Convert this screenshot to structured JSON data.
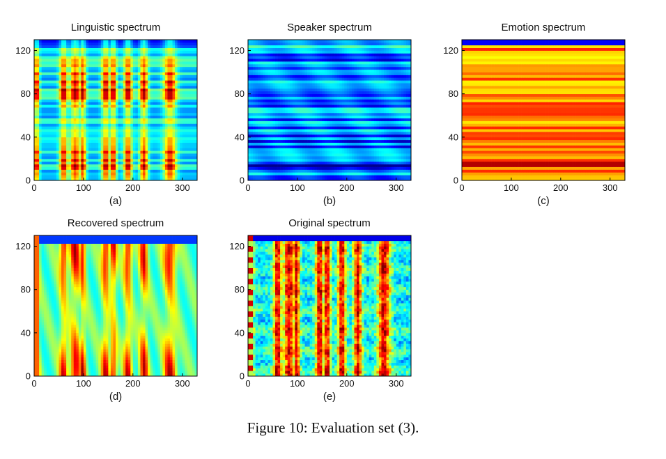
{
  "figure": {
    "caption": "Figure 10: Evaluation set (3)."
  },
  "colors": {
    "colormap": [
      "#00008f",
      "#0000ff",
      "#0080ff",
      "#00ffff",
      "#80ff80",
      "#ffff00",
      "#ff8000",
      "#ff0000",
      "#800000"
    ]
  },
  "chart_data": [
    {
      "type": "heatmap",
      "title": "Linguistic spectrum",
      "sublabel": "(a)",
      "xlim": [
        0,
        330
      ],
      "ylim": [
        0,
        130
      ],
      "xticks": [
        0,
        100,
        200,
        300
      ],
      "yticks": [
        0,
        40,
        80,
        120
      ],
      "pattern": "linguistic"
    },
    {
      "type": "heatmap",
      "title": "Speaker spectrum",
      "sublabel": "(b)",
      "xlim": [
        0,
        330
      ],
      "ylim": [
        0,
        130
      ],
      "xticks": [
        0,
        100,
        200,
        300
      ],
      "yticks": [
        0,
        40,
        80,
        120
      ],
      "pattern": "speaker"
    },
    {
      "type": "heatmap",
      "title": "Emotion spectrum",
      "sublabel": "(c)",
      "xlim": [
        0,
        330
      ],
      "ylim": [
        0,
        130
      ],
      "xticks": [
        0,
        100,
        200,
        300
      ],
      "yticks": [
        0,
        40,
        80,
        120
      ],
      "pattern": "emotion"
    },
    {
      "type": "heatmap",
      "title": "Recovered spectrum",
      "sublabel": "(d)",
      "xlim": [
        0,
        330
      ],
      "ylim": [
        0,
        130
      ],
      "xticks": [
        0,
        100,
        200,
        300
      ],
      "yticks": [
        0,
        40,
        80,
        120
      ],
      "pattern": "recovered"
    },
    {
      "type": "heatmap",
      "title": "Original spectrum",
      "sublabel": "(e)",
      "xlim": [
        0,
        330
      ],
      "ylim": [
        0,
        130
      ],
      "xticks": [
        0,
        100,
        200,
        300
      ],
      "yticks": [
        0,
        40,
        80,
        120
      ],
      "pattern": "original"
    }
  ]
}
